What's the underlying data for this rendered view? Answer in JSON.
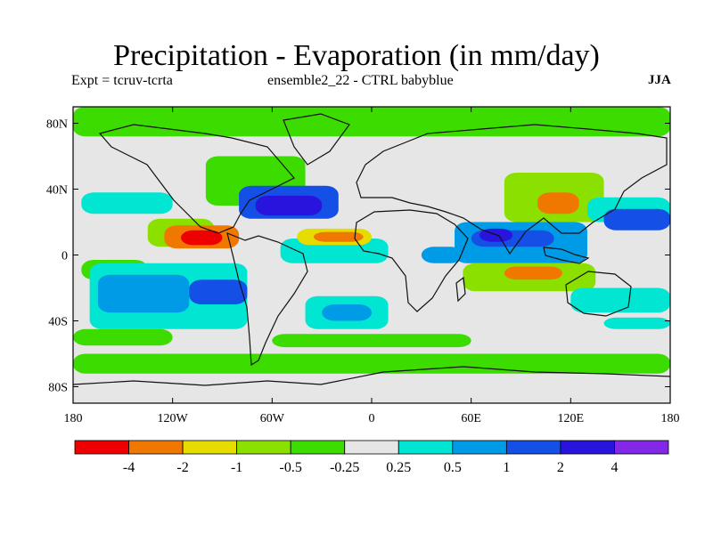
{
  "chart_data": {
    "type": "heatmap",
    "title": "Precipitation - Evaporation (in mm/day)",
    "subtitle_left": "Expt = tcruv-tcrta",
    "subtitle_center": "ensemble2_22 - CTRL babyblue",
    "subtitle_right": "JJA",
    "x_ticks": [
      "180",
      "120W",
      "60W",
      "0",
      "60E",
      "120E",
      "180"
    ],
    "y_ticks": [
      "80N",
      "40N",
      "0",
      "40S",
      "80S"
    ],
    "xlim": [
      -180,
      180
    ],
    "ylim": [
      -90,
      90
    ],
    "colorbar": {
      "colors": [
        "#ee0000",
        "#f07800",
        "#e6dc00",
        "#8ce000",
        "#3cdc00",
        "#e6e6e6",
        "#00e6d2",
        "#009be6",
        "#1450e6",
        "#2814dc",
        "#8228e6"
      ],
      "labels": [
        "-4",
        "-2",
        "-1",
        "-0.5",
        "-0.25",
        "0.25",
        "0.5",
        "1",
        "2",
        "4"
      ]
    },
    "regions": [
      {
        "lon": [
          -180,
          180
        ],
        "lat": [
          72,
          90
        ],
        "level": 4
      },
      {
        "lon": [
          -175,
          -120
        ],
        "lat": [
          25,
          38
        ],
        "level": 6
      },
      {
        "lon": [
          -175,
          -135
        ],
        "lat": [
          -15,
          -3
        ],
        "level": 4
      },
      {
        "lon": [
          -170,
          -75
        ],
        "lat": [
          -45,
          -5
        ],
        "level": 6
      },
      {
        "lon": [
          -165,
          -110
        ],
        "lat": [
          -35,
          -12
        ],
        "level": 7
      },
      {
        "lon": [
          -110,
          -75
        ],
        "lat": [
          -30,
          -15
        ],
        "level": 8
      },
      {
        "lon": [
          -135,
          -95
        ],
        "lat": [
          5,
          22
        ],
        "level": 3
      },
      {
        "lon": [
          -125,
          -80
        ],
        "lat": [
          4,
          18
        ],
        "level": 1
      },
      {
        "lon": [
          -115,
          -90
        ],
        "lat": [
          6,
          15
        ],
        "level": 0
      },
      {
        "lon": [
          -100,
          -40
        ],
        "lat": [
          30,
          60
        ],
        "level": 4
      },
      {
        "lon": [
          -80,
          -20
        ],
        "lat": [
          22,
          42
        ],
        "level": 8
      },
      {
        "lon": [
          -70,
          -30
        ],
        "lat": [
          24,
          36
        ],
        "level": 9
      },
      {
        "lon": [
          -55,
          10
        ],
        "lat": [
          -5,
          10
        ],
        "level": 6
      },
      {
        "lon": [
          -45,
          0
        ],
        "lat": [
          6,
          16
        ],
        "level": 2
      },
      {
        "lon": [
          -35,
          -5
        ],
        "lat": [
          8,
          14
        ],
        "level": 1
      },
      {
        "lon": [
          -40,
          10
        ],
        "lat": [
          -45,
          -25
        ],
        "level": 6
      },
      {
        "lon": [
          -30,
          0
        ],
        "lat": [
          -40,
          -30
        ],
        "level": 7
      },
      {
        "lon": [
          30,
          55
        ],
        "lat": [
          -5,
          5
        ],
        "level": 7
      },
      {
        "lon": [
          50,
          130
        ],
        "lat": [
          -5,
          20
        ],
        "level": 7
      },
      {
        "lon": [
          60,
          110
        ],
        "lat": [
          5,
          15
        ],
        "level": 8
      },
      {
        "lon": [
          65,
          85
        ],
        "lat": [
          8,
          16
        ],
        "level": 9
      },
      {
        "lon": [
          55,
          135
        ],
        "lat": [
          -22,
          -5
        ],
        "level": 3
      },
      {
        "lon": [
          80,
          115
        ],
        "lat": [
          -15,
          -7
        ],
        "level": 1
      },
      {
        "lon": [
          80,
          140
        ],
        "lat": [
          20,
          50
        ],
        "level": 3
      },
      {
        "lon": [
          100,
          125
        ],
        "lat": [
          25,
          38
        ],
        "level": 1
      },
      {
        "lon": [
          130,
          180
        ],
        "lat": [
          20,
          35
        ],
        "level": 6
      },
      {
        "lon": [
          140,
          180
        ],
        "lat": [
          15,
          28
        ],
        "level": 8
      },
      {
        "lon": [
          120,
          180
        ],
        "lat": [
          -35,
          -20
        ],
        "level": 6
      },
      {
        "lon": [
          -180,
          180
        ],
        "lat": [
          -72,
          -60
        ],
        "level": 4
      },
      {
        "lon": [
          -60,
          60
        ],
        "lat": [
          -56,
          -48
        ],
        "level": 4
      },
      {
        "lon": [
          -180,
          -120
        ],
        "lat": [
          -55,
          -45
        ],
        "level": 4
      },
      {
        "lon": [
          140,
          180
        ],
        "lat": [
          -45,
          -38
        ],
        "level": 6
      }
    ]
  }
}
